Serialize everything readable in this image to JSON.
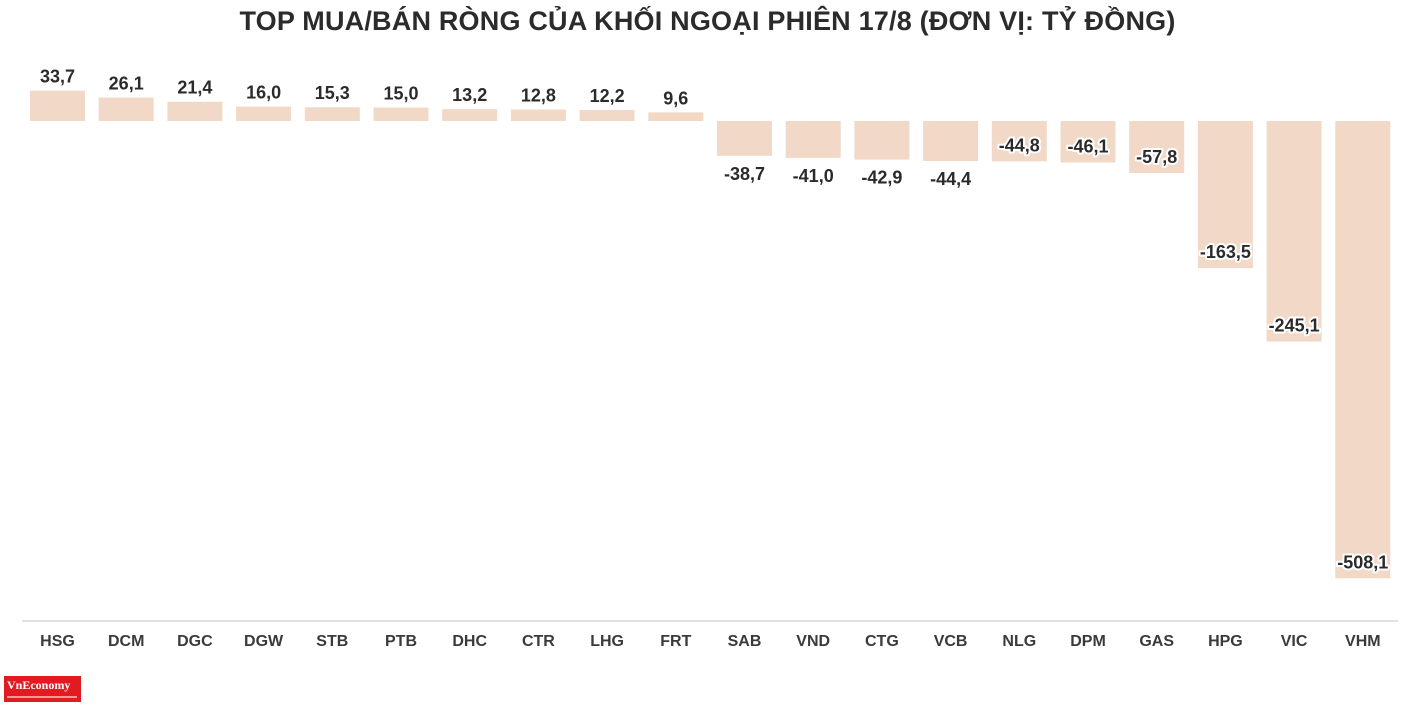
{
  "chart_data": {
    "type": "bar",
    "title": "TOP MUA/BÁN RÒNG CỦA KHỐI NGOẠI PHIÊN 17/8 (ĐƠN VỊ: TỶ ĐỒNG)",
    "categories": [
      "HSG",
      "DCM",
      "DGC",
      "DGW",
      "STB",
      "PTB",
      "DHC",
      "CTR",
      "LHG",
      "FRT",
      "SAB",
      "VND",
      "CTG",
      "VCB",
      "NLG",
      "DPM",
      "GAS",
      "HPG",
      "VIC",
      "VHM"
    ],
    "values": [
      33.7,
      26.1,
      21.4,
      16.0,
      15.3,
      15.0,
      13.2,
      12.8,
      12.2,
      9.6,
      -38.7,
      -41.0,
      -42.9,
      -44.4,
      -44.8,
      -46.1,
      -57.8,
      -163.5,
      -245.1,
      -508.1
    ],
    "data_labels": [
      "33,7",
      "26,1",
      "21,4",
      "16,0",
      "15,3",
      "15,0",
      "13,2",
      "12,8",
      "12,2",
      "9,6",
      "-38,7",
      "-41,0",
      "-42,9",
      "-44,4",
      "-44,8",
      "-46,1",
      "-57,8",
      "-163,5",
      "-245,1",
      "-508,1"
    ],
    "xlabel": "",
    "ylabel": "",
    "grid": false,
    "bar_color": "#f2d9c7",
    "axis_color": "#d9d9d9"
  },
  "logo": {
    "text": "VnEconomy",
    "color": "#e21b23"
  }
}
